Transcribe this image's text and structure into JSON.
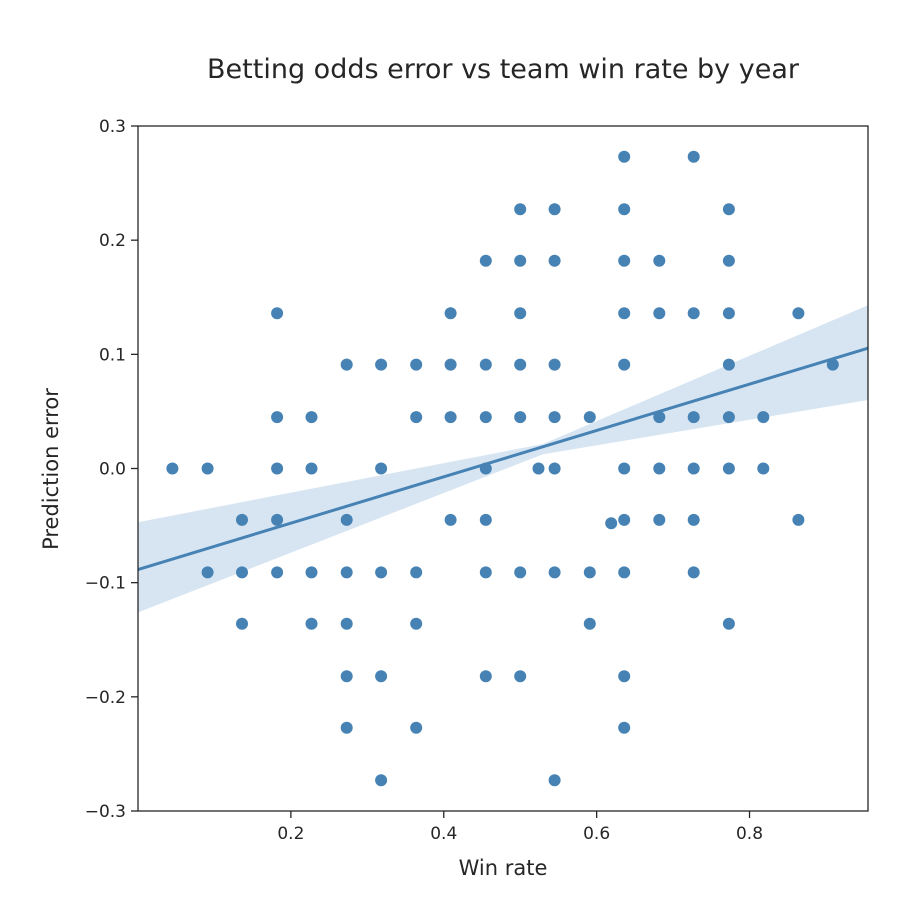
{
  "chart_data": {
    "type": "scatter",
    "title": "Betting odds error vs team win rate by year",
    "xlabel": "Win rate",
    "ylabel": "Prediction error",
    "xlim": [
      0.0,
      0.955
    ],
    "ylim": [
      -0.3,
      0.3
    ],
    "xticks": [
      0.2,
      0.4,
      0.6,
      0.8
    ],
    "xtick_labels": [
      "0.2",
      "0.4",
      "0.6",
      "0.8"
    ],
    "yticks": [
      -0.3,
      -0.2,
      -0.1,
      0.0,
      0.1,
      0.2,
      0.3
    ],
    "ytick_labels": [
      "−0.3",
      "−0.2",
      "−0.1",
      "0.0",
      "0.1",
      "0.2",
      "0.3"
    ],
    "grid": false,
    "colors": {
      "points": "#4682b4",
      "line": "#4682b4",
      "band": "#b7cfe7",
      "axes": "#262626"
    },
    "regression": {
      "slope": 0.203,
      "intercept": -0.0885,
      "band_x_ends": [
        0.0,
        0.955
      ],
      "band_low_ends": [
        -0.126,
        0.06
      ],
      "band_high_ends": [
        -0.047,
        0.143
      ]
    },
    "points": [
      [
        0.045,
        0.0
      ],
      [
        0.091,
        0.0
      ],
      [
        0.091,
        -0.091
      ],
      [
        0.136,
        -0.045
      ],
      [
        0.136,
        -0.091
      ],
      [
        0.136,
        -0.136
      ],
      [
        0.182,
        0.136
      ],
      [
        0.182,
        0.045
      ],
      [
        0.182,
        0.0
      ],
      [
        0.182,
        -0.045
      ],
      [
        0.182,
        -0.091
      ],
      [
        0.227,
        0.045
      ],
      [
        0.227,
        0.0
      ],
      [
        0.227,
        -0.091
      ],
      [
        0.227,
        -0.136
      ],
      [
        0.273,
        0.091
      ],
      [
        0.273,
        -0.045
      ],
      [
        0.273,
        -0.091
      ],
      [
        0.273,
        -0.136
      ],
      [
        0.273,
        -0.182
      ],
      [
        0.273,
        -0.227
      ],
      [
        0.318,
        0.091
      ],
      [
        0.318,
        0.0
      ],
      [
        0.318,
        -0.091
      ],
      [
        0.318,
        -0.182
      ],
      [
        0.318,
        -0.273
      ],
      [
        0.364,
        0.091
      ],
      [
        0.364,
        0.045
      ],
      [
        0.364,
        -0.091
      ],
      [
        0.364,
        -0.136
      ],
      [
        0.364,
        -0.227
      ],
      [
        0.409,
        0.136
      ],
      [
        0.409,
        0.091
      ],
      [
        0.409,
        0.045
      ],
      [
        0.409,
        -0.045
      ],
      [
        0.455,
        0.182
      ],
      [
        0.455,
        0.091
      ],
      [
        0.455,
        0.045
      ],
      [
        0.455,
        0.0
      ],
      [
        0.455,
        -0.045
      ],
      [
        0.455,
        -0.091
      ],
      [
        0.455,
        -0.182
      ],
      [
        0.5,
        0.227
      ],
      [
        0.5,
        0.182
      ],
      [
        0.5,
        0.136
      ],
      [
        0.5,
        0.091
      ],
      [
        0.5,
        0.045
      ],
      [
        0.5,
        -0.091
      ],
      [
        0.5,
        -0.182
      ],
      [
        0.524,
        0.0
      ],
      [
        0.545,
        0.227
      ],
      [
        0.545,
        0.182
      ],
      [
        0.545,
        0.091
      ],
      [
        0.545,
        0.045
      ],
      [
        0.545,
        0.0
      ],
      [
        0.545,
        -0.091
      ],
      [
        0.545,
        -0.273
      ],
      [
        0.591,
        0.045
      ],
      [
        0.591,
        -0.091
      ],
      [
        0.591,
        -0.136
      ],
      [
        0.619,
        -0.048
      ],
      [
        0.636,
        0.273
      ],
      [
        0.636,
        0.227
      ],
      [
        0.636,
        0.182
      ],
      [
        0.636,
        0.136
      ],
      [
        0.636,
        0.091
      ],
      [
        0.636,
        0.0
      ],
      [
        0.636,
        -0.045
      ],
      [
        0.636,
        -0.091
      ],
      [
        0.636,
        -0.182
      ],
      [
        0.636,
        -0.227
      ],
      [
        0.682,
        0.182
      ],
      [
        0.682,
        0.136
      ],
      [
        0.682,
        0.045
      ],
      [
        0.682,
        0.0
      ],
      [
        0.682,
        -0.045
      ],
      [
        0.727,
        0.273
      ],
      [
        0.727,
        0.136
      ],
      [
        0.727,
        0.045
      ],
      [
        0.727,
        0.0
      ],
      [
        0.727,
        -0.045
      ],
      [
        0.727,
        -0.091
      ],
      [
        0.773,
        0.227
      ],
      [
        0.773,
        0.182
      ],
      [
        0.773,
        0.136
      ],
      [
        0.773,
        0.091
      ],
      [
        0.773,
        0.045
      ],
      [
        0.773,
        0.0
      ],
      [
        0.773,
        -0.136
      ],
      [
        0.818,
        0.045
      ],
      [
        0.818,
        0.0
      ],
      [
        0.864,
        0.136
      ],
      [
        0.864,
        -0.045
      ],
      [
        0.909,
        0.091
      ]
    ]
  }
}
